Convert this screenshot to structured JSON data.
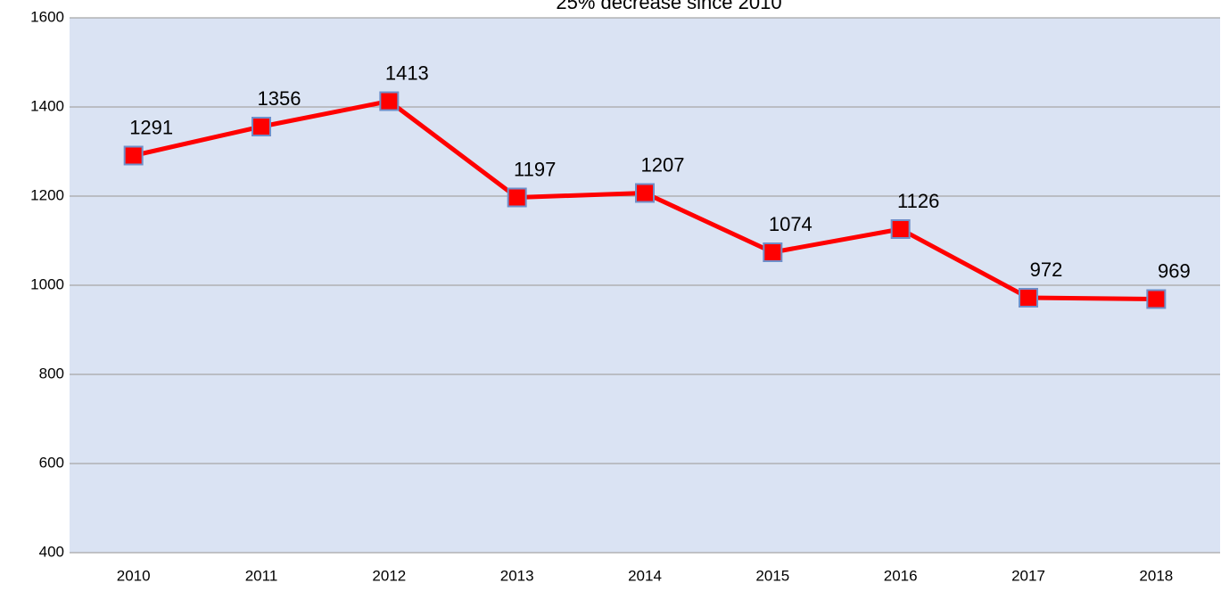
{
  "chart_data": {
    "type": "line",
    "title": "25% decrease since 2010",
    "categories": [
      "2010",
      "2011",
      "2012",
      "2013",
      "2014",
      "2015",
      "2016",
      "2017",
      "2018"
    ],
    "values": [
      1291,
      1356,
      1413,
      1197,
      1207,
      1074,
      1126,
      972,
      969
    ],
    "color": "#ff0000",
    "marker_edge_color": "#6f8fc9",
    "plot_background": "#dae3f3",
    "ylim": [
      400,
      1600
    ],
    "yticks": [
      400,
      600,
      800,
      1000,
      1200,
      1400,
      1600
    ],
    "grid": true
  }
}
